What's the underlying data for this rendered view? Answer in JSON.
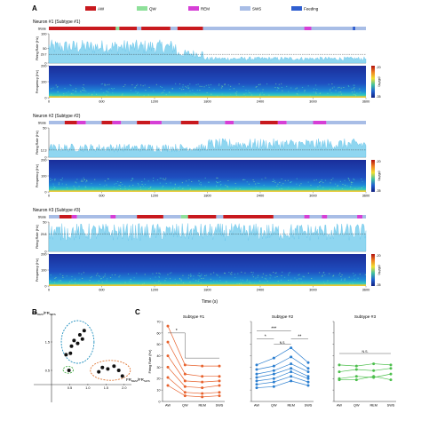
{
  "panel_labels": [
    "A",
    "B",
    "C"
  ],
  "legend": {
    "items": [
      {
        "label": "AW",
        "color": "#c8191e"
      },
      {
        "label": "QW",
        "color": "#8ee09a"
      },
      {
        "label": "REM",
        "color": "#d63fd6"
      },
      {
        "label": "SWS",
        "color": "#a8bde6"
      },
      {
        "label": "Feeding",
        "color": "#2f5fd0"
      }
    ]
  },
  "common": {
    "state_label": "State",
    "fr_ylabel": "Firing Rate (Hz)",
    "freq_ylabel": "Frequency (Hz)",
    "time_label": "Time (s)",
    "time_ticks": [
      "0",
      "600",
      "1200",
      "1800",
      "2400",
      "3000",
      "3600"
    ],
    "freq_ticks": [
      "0",
      "100",
      "200"
    ],
    "cbar_ticks": [
      "-20",
      "-35"
    ],
    "cbar_unit": "(dB/Hz)"
  },
  "chart_data": [
    {
      "type": "area",
      "title": "Neuron #1 (Subtype #1)",
      "xlabel": "Time (s)",
      "ylabel": "Firing Rate (Hz)",
      "xlim": [
        0,
        3600
      ],
      "ylim": [
        0,
        100
      ],
      "yticks": [
        "0",
        "50",
        "100"
      ],
      "threshold_label": "29.7",
      "threshold": 29.7,
      "fr_segments": [
        {
          "x0": 0,
          "x1": 1450,
          "level": 55
        },
        {
          "x0": 1450,
          "x1": 1750,
          "level": 32
        },
        {
          "x0": 1750,
          "x1": 3600,
          "level": 15
        }
      ],
      "states": [
        {
          "s": 0,
          "e": 760,
          "state": "AW"
        },
        {
          "s": 760,
          "e": 800,
          "state": "QW"
        },
        {
          "s": 800,
          "e": 1000,
          "state": "AW"
        },
        {
          "s": 1000,
          "e": 1050,
          "state": "SWS"
        },
        {
          "s": 1050,
          "e": 1380,
          "state": "AW"
        },
        {
          "s": 1380,
          "e": 1460,
          "state": "SWS"
        },
        {
          "s": 1460,
          "e": 1750,
          "state": "AW"
        },
        {
          "s": 1750,
          "e": 2900,
          "state": "SWS"
        },
        {
          "s": 2900,
          "e": 2980,
          "state": "REM"
        },
        {
          "s": 2980,
          "e": 3450,
          "state": "SWS"
        },
        {
          "s": 3450,
          "e": 3480,
          "state": "Feeding"
        },
        {
          "s": 3480,
          "e": 3600,
          "state": "SWS"
        }
      ]
    },
    {
      "type": "area",
      "title": "Neuron #2 (Subtype #2)",
      "xlabel": "Time (s)",
      "ylabel": "Firing Rate (Hz)",
      "xlim": [
        0,
        3600
      ],
      "ylim": [
        0,
        50
      ],
      "yticks": [
        "0",
        "50"
      ],
      "threshold_label": "12.3",
      "threshold": 12.3,
      "fr_segments": [
        {
          "x0": 0,
          "x1": 1800,
          "level": 16
        },
        {
          "x0": 1800,
          "x1": 3600,
          "level": 22
        }
      ],
      "states": [
        {
          "s": 0,
          "e": 180,
          "state": "SWS"
        },
        {
          "s": 180,
          "e": 320,
          "state": "AW"
        },
        {
          "s": 320,
          "e": 420,
          "state": "REM"
        },
        {
          "s": 420,
          "e": 600,
          "state": "SWS"
        },
        {
          "s": 600,
          "e": 720,
          "state": "AW"
        },
        {
          "s": 720,
          "e": 820,
          "state": "REM"
        },
        {
          "s": 820,
          "e": 1000,
          "state": "SWS"
        },
        {
          "s": 1000,
          "e": 1150,
          "state": "AW"
        },
        {
          "s": 1150,
          "e": 1280,
          "state": "REM"
        },
        {
          "s": 1280,
          "e": 1500,
          "state": "SWS"
        },
        {
          "s": 1500,
          "e": 1700,
          "state": "AW"
        },
        {
          "s": 1700,
          "e": 2000,
          "state": "SWS"
        },
        {
          "s": 2000,
          "e": 2100,
          "state": "REM"
        },
        {
          "s": 2100,
          "e": 2400,
          "state": "SWS"
        },
        {
          "s": 2400,
          "e": 2600,
          "state": "AW"
        },
        {
          "s": 2600,
          "e": 2700,
          "state": "REM"
        },
        {
          "s": 2700,
          "e": 3000,
          "state": "SWS"
        },
        {
          "s": 3000,
          "e": 3150,
          "state": "REM"
        },
        {
          "s": 3150,
          "e": 3600,
          "state": "SWS"
        }
      ]
    },
    {
      "type": "area",
      "title": "Neuron #3 (Subtype #3)",
      "xlabel": "Time (s)",
      "ylabel": "Firing Rate (Hz)",
      "xlim": [
        0,
        3600
      ],
      "ylim": [
        0,
        50
      ],
      "yticks": [
        "0",
        "50"
      ],
      "threshold_label": "29.8",
      "threshold": 29.8,
      "fr_segments": [
        {
          "x0": 0,
          "x1": 3600,
          "level": 33
        }
      ],
      "states": [
        {
          "s": 0,
          "e": 120,
          "state": "SWS"
        },
        {
          "s": 120,
          "e": 260,
          "state": "AW"
        },
        {
          "s": 260,
          "e": 320,
          "state": "REM"
        },
        {
          "s": 320,
          "e": 700,
          "state": "SWS"
        },
        {
          "s": 700,
          "e": 760,
          "state": "REM"
        },
        {
          "s": 760,
          "e": 1000,
          "state": "SWS"
        },
        {
          "s": 1000,
          "e": 1300,
          "state": "AW"
        },
        {
          "s": 1300,
          "e": 1500,
          "state": "SWS"
        },
        {
          "s": 1500,
          "e": 1580,
          "state": "QW"
        },
        {
          "s": 1580,
          "e": 1900,
          "state": "AW"
        },
        {
          "s": 1900,
          "e": 1980,
          "state": "SWS"
        },
        {
          "s": 1980,
          "e": 2550,
          "state": "AW"
        },
        {
          "s": 2550,
          "e": 2900,
          "state": "SWS"
        },
        {
          "s": 2900,
          "e": 2960,
          "state": "REM"
        },
        {
          "s": 2960,
          "e": 3100,
          "state": "SWS"
        },
        {
          "s": 3100,
          "e": 3160,
          "state": "REM"
        },
        {
          "s": 3160,
          "e": 3500,
          "state": "SWS"
        },
        {
          "s": 3500,
          "e": 3560,
          "state": "REM"
        },
        {
          "s": 3560,
          "e": 3600,
          "state": "SWS"
        }
      ]
    },
    {
      "type": "scatter",
      "xlabel": "FR_AW/FR_SWS",
      "ylabel": "FR_REM/FR_SWS",
      "x_axis_label": {
        "main": "FR",
        "sub1": "REM",
        "mid": "/FR",
        "sub2": "SWS"
      },
      "y_axis_label": {
        "main": "FR",
        "sub1": "REM",
        "mid": "/FR",
        "sub2": "SWS"
      },
      "xlim": [
        0,
        2.2
      ],
      "ylim": [
        0,
        2.5
      ],
      "xticks": [
        "0.5",
        "1.0",
        "1.5",
        "2.0"
      ],
      "yticks": [
        "0.5",
        "1.5"
      ],
      "points": [
        {
          "x": 0.52,
          "y": 1.1
        },
        {
          "x": 0.55,
          "y": 1.35
        },
        {
          "x": 0.62,
          "y": 1.55
        },
        {
          "x": 0.72,
          "y": 1.45
        },
        {
          "x": 0.78,
          "y": 1.75
        },
        {
          "x": 0.85,
          "y": 1.6
        },
        {
          "x": 0.9,
          "y": 1.9
        },
        {
          "x": 0.4,
          "y": 1.05
        },
        {
          "x": 1.4,
          "y": 0.6
        },
        {
          "x": 1.55,
          "y": 0.55
        },
        {
          "x": 1.72,
          "y": 0.65
        },
        {
          "x": 1.85,
          "y": 0.5
        },
        {
          "x": 1.3,
          "y": 0.45
        },
        {
          "x": 1.95,
          "y": 0.3
        },
        {
          "x": 0.48,
          "y": 0.5
        }
      ],
      "clusters": [
        {
          "cx": 0.72,
          "cy": 1.5,
          "rx": 0.45,
          "ry": 0.75,
          "color": "#1f8fbf"
        },
        {
          "cx": 1.62,
          "cy": 0.5,
          "rx": 0.55,
          "ry": 0.35,
          "color": "#e07b3a"
        },
        {
          "cx": 0.46,
          "cy": 0.52,
          "rx": 0.14,
          "ry": 0.12,
          "color": "#4ab04a"
        }
      ]
    },
    {
      "type": "line",
      "title": "Subtype #1",
      "ylabel": "Firing Rate (Hz)",
      "categories": [
        "AW",
        "QW",
        "REM",
        "SWS"
      ],
      "ylim": [
        0,
        70
      ],
      "yticks": [
        "0",
        "10",
        "20",
        "30",
        "40",
        "50",
        "60",
        "70"
      ],
      "color": "#e8622d",
      "series": [
        {
          "values": [
            66,
            32,
            31,
            31
          ]
        },
        {
          "values": [
            52,
            24,
            22,
            22
          ]
        },
        {
          "values": [
            40,
            18,
            17,
            18
          ]
        },
        {
          "values": [
            30,
            13,
            12,
            14
          ]
        },
        {
          "values": [
            21,
            8,
            7,
            8
          ]
        },
        {
          "values": [
            14,
            5,
            4,
            5
          ]
        }
      ],
      "annotation": "*"
    },
    {
      "type": "line",
      "title": "Subtype #2",
      "categories": [
        "AW",
        "QW",
        "REM",
        "SWS"
      ],
      "ylim": [
        0,
        70
      ],
      "color": "#2c7fd0",
      "series": [
        {
          "values": [
            32,
            38,
            47,
            34
          ]
        },
        {
          "values": [
            28,
            31,
            39,
            29
          ]
        },
        {
          "values": [
            24,
            27,
            33,
            26
          ]
        },
        {
          "values": [
            21,
            24,
            29,
            22
          ]
        },
        {
          "values": [
            18,
            20,
            26,
            20
          ]
        },
        {
          "values": [
            15,
            17,
            22,
            17
          ]
        },
        {
          "values": [
            12,
            13,
            18,
            14
          ]
        }
      ],
      "annotations": [
        "*",
        "***",
        "N.S.",
        "**"
      ]
    },
    {
      "type": "line",
      "title": "Subtype #3",
      "categories": [
        "AW",
        "QW",
        "REM",
        "SWS"
      ],
      "ylim": [
        0,
        70
      ],
      "color": "#4cbf4c",
      "series": [
        {
          "values": [
            32,
            31,
            33,
            32
          ]
        },
        {
          "values": [
            26,
            28,
            27,
            29
          ]
        },
        {
          "values": [
            20,
            22,
            21,
            24
          ]
        },
        {
          "values": [
            19,
            19,
            22,
            19
          ]
        }
      ],
      "annotation": "N.S."
    }
  ]
}
